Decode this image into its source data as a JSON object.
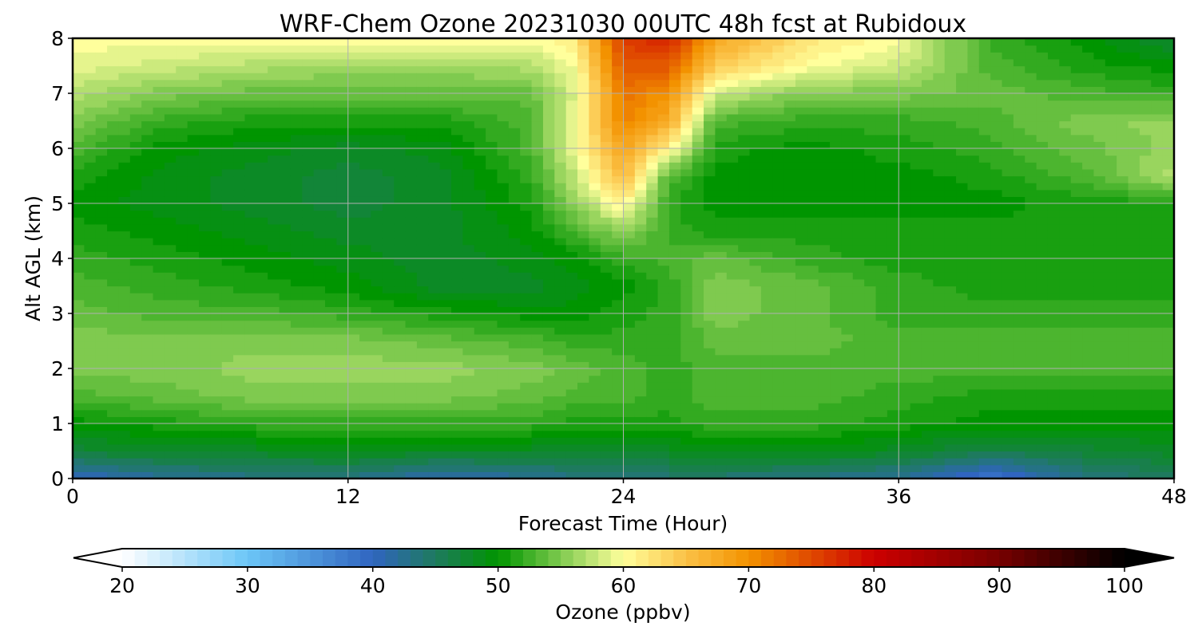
{
  "chart_data": {
    "type": "heatmap",
    "title": "WRF-Chem Ozone  20231030 00UTC 48h fcst at Rubidoux",
    "xlabel": "Forecast Time (Hour)",
    "ylabel": "Alt AGL (km)",
    "xlim": [
      0,
      48
    ],
    "ylim": [
      0,
      8
    ],
    "xticks": [
      0,
      12,
      24,
      36,
      48
    ],
    "yticks": [
      0,
      1,
      2,
      3,
      4,
      5,
      6,
      7,
      8
    ],
    "grid": true,
    "x": [
      0,
      4,
      8,
      12,
      16,
      20,
      22,
      24,
      26,
      28,
      32,
      36,
      40,
      44,
      48
    ],
    "y": [
      0,
      0.5,
      1,
      1.5,
      2,
      2.5,
      3,
      3.5,
      4,
      4.5,
      5,
      5.5,
      6,
      6.5,
      7,
      7.5,
      8
    ],
    "z": [
      [
        40,
        42,
        43,
        43,
        41,
        42,
        43,
        43,
        44,
        44,
        43,
        42,
        38,
        43,
        45
      ],
      [
        47,
        48,
        48,
        49,
        48,
        48,
        48,
        48,
        48,
        49,
        49,
        48,
        46,
        47,
        48
      ],
      [
        50,
        51,
        52,
        52,
        52,
        52,
        51,
        51,
        51,
        52,
        52,
        51,
        50,
        50,
        50
      ],
      [
        53,
        54,
        55,
        55,
        55,
        54,
        53,
        53,
        52,
        53,
        53,
        52,
        51,
        51,
        51
      ],
      [
        55,
        55,
        56,
        56,
        56,
        55,
        54,
        53,
        52,
        53,
        53,
        53,
        53,
        53,
        53
      ],
      [
        55,
        55,
        55,
        55,
        54,
        53,
        52,
        52,
        52,
        54,
        54,
        53,
        53,
        53,
        53
      ],
      [
        54,
        53,
        53,
        52,
        51,
        50,
        50,
        51,
        52,
        55,
        54,
        52,
        52,
        52,
        52
      ],
      [
        53,
        52,
        51,
        50,
        48,
        48,
        49,
        50,
        52,
        55,
        54,
        52,
        51,
        51,
        51
      ],
      [
        52,
        51,
        50,
        49,
        48,
        49,
        50,
        52,
        53,
        54,
        52,
        51,
        51,
        51,
        51
      ],
      [
        51,
        50,
        49,
        48,
        48,
        50,
        53,
        56,
        52,
        51,
        51,
        51,
        51,
        51,
        51
      ],
      [
        50,
        49,
        48,
        47,
        48,
        51,
        56,
        61,
        52,
        50,
        50,
        50,
        50,
        51,
        51
      ],
      [
        51,
        49,
        48,
        47,
        48,
        52,
        58,
        66,
        53,
        50,
        50,
        50,
        51,
        53,
        57
      ],
      [
        53,
        50,
        49,
        48,
        49,
        53,
        60,
        68,
        61,
        51,
        50,
        51,
        52,
        54,
        56
      ],
      [
        55,
        52,
        51,
        51,
        51,
        53,
        60,
        71,
        67,
        53,
        52,
        52,
        53,
        55,
        56
      ],
      [
        57,
        55,
        54,
        54,
        54,
        54,
        59,
        72,
        70,
        58,
        55,
        55,
        54,
        53,
        52
      ],
      [
        59,
        58,
        57,
        56,
        56,
        57,
        60,
        74,
        74,
        64,
        60,
        58,
        53,
        51,
        50
      ],
      [
        60,
        60,
        60,
        60,
        60,
        60,
        62,
        76,
        78,
        68,
        62,
        60,
        52,
        50,
        47
      ]
    ],
    "colorbar": {
      "label": "Ozone  (ppbv)",
      "min": 20,
      "max": 100,
      "ticks": [
        20,
        30,
        40,
        50,
        60,
        70,
        80,
        90,
        100
      ],
      "extend": "both",
      "colors": [
        {
          "v": 20,
          "c": "#ffffff"
        },
        {
          "v": 30,
          "c": "#6cc6f7"
        },
        {
          "v": 40,
          "c": "#3065c0"
        },
        {
          "v": 45,
          "c": "#1e7a5e"
        },
        {
          "v": 50,
          "c": "#009500"
        },
        {
          "v": 55,
          "c": "#7fca4f"
        },
        {
          "v": 60,
          "c": "#ffff9c"
        },
        {
          "v": 65,
          "c": "#fbc146"
        },
        {
          "v": 70,
          "c": "#f39200"
        },
        {
          "v": 80,
          "c": "#cc0000"
        },
        {
          "v": 90,
          "c": "#770000"
        },
        {
          "v": 100,
          "c": "#000000"
        }
      ]
    }
  }
}
